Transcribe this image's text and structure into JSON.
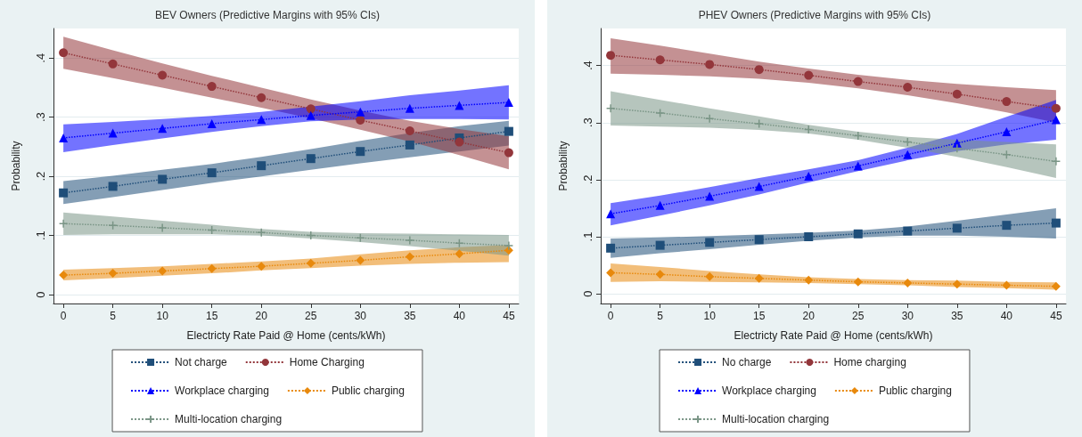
{
  "chart_data": [
    {
      "type": "line",
      "title": "BEV Owners (Predictive Margins with 95% CIs)",
      "xlabel": "Electricty Rate Paid @ Home (cents/kWh)",
      "ylabel": "Probability",
      "x": [
        0,
        5,
        10,
        15,
        20,
        25,
        30,
        35,
        40,
        45
      ],
      "xlim": [
        -1,
        46
      ],
      "xticks": [
        0,
        5,
        10,
        15,
        20,
        25,
        30,
        35,
        40,
        45
      ],
      "ylim": [
        -0.015,
        0.45
      ],
      "yticks": [
        0,
        {
          "value": 0.1,
          "label": ".1"
        },
        {
          "value": 0.2,
          "label": ".2"
        },
        {
          "value": 0.3,
          "label": ".3"
        },
        {
          "value": 0.4,
          "label": ".4"
        }
      ],
      "grid": "y",
      "legend": "bottom",
      "line_style": "dotted",
      "series": [
        {
          "name": "Not charge",
          "color": "#1f4e79",
          "marker": "square",
          "values": [
            0.172,
            0.183,
            0.195,
            0.206,
            0.218,
            0.23,
            0.242,
            0.253,
            0.265,
            0.276
          ],
          "lower": [
            0.153,
            0.165,
            0.177,
            0.189,
            0.2,
            0.211,
            0.222,
            0.232,
            0.242,
            0.252
          ],
          "upper": [
            0.192,
            0.201,
            0.211,
            0.221,
            0.233,
            0.246,
            0.26,
            0.273,
            0.285,
            0.294
          ]
        },
        {
          "name": "Home Charging",
          "color": "#93363b",
          "marker": "circle",
          "values": [
            0.409,
            0.39,
            0.371,
            0.352,
            0.333,
            0.314,
            0.295,
            0.277,
            0.258,
            0.24
          ],
          "lower": [
            0.382,
            0.366,
            0.35,
            0.333,
            0.316,
            0.298,
            0.279,
            0.259,
            0.236,
            0.212
          ],
          "upper": [
            0.436,
            0.413,
            0.391,
            0.37,
            0.35,
            0.33,
            0.311,
            0.294,
            0.28,
            0.268
          ]
        },
        {
          "name": "Workplace charging",
          "color": "#0000ff",
          "marker": "triangle",
          "values": [
            0.265,
            0.273,
            0.281,
            0.289,
            0.296,
            0.303,
            0.309,
            0.315,
            0.32,
            0.325
          ],
          "lower": [
            0.241,
            0.253,
            0.264,
            0.275,
            0.285,
            0.293,
            0.296,
            0.297,
            0.297,
            0.296
          ],
          "upper": [
            0.288,
            0.292,
            0.297,
            0.302,
            0.309,
            0.318,
            0.327,
            0.337,
            0.345,
            0.354
          ]
        },
        {
          "name": "Public charging",
          "color": "#e8890c",
          "marker": "diamond",
          "values": [
            0.033,
            0.036,
            0.04,
            0.044,
            0.048,
            0.053,
            0.058,
            0.064,
            0.069,
            0.075
          ],
          "lower": [
            0.024,
            0.028,
            0.032,
            0.036,
            0.041,
            0.045,
            0.049,
            0.052,
            0.054,
            0.055
          ],
          "upper": [
            0.042,
            0.045,
            0.048,
            0.052,
            0.056,
            0.061,
            0.068,
            0.075,
            0.08,
            0.084
          ]
        },
        {
          "name": "Multi-location charging",
          "color": "#7a9586",
          "marker": "cross",
          "values": [
            0.12,
            0.117,
            0.113,
            0.109,
            0.105,
            0.1,
            0.096,
            0.092,
            0.087,
            0.083
          ],
          "lower": [
            0.101,
            0.102,
            0.102,
            0.102,
            0.1,
            0.095,
            0.089,
            0.082,
            0.074,
            0.066
          ],
          "upper": [
            0.139,
            0.132,
            0.125,
            0.118,
            0.111,
            0.106,
            0.104,
            0.103,
            0.102,
            0.101
          ]
        }
      ]
    },
    {
      "type": "line",
      "title": "PHEV Owners (Predictive Margins with 95% CIs)",
      "xlabel": "Electricty Rate Paid @ Home (cents/kWh)",
      "ylabel": "Probability",
      "x": [
        0,
        5,
        10,
        15,
        20,
        25,
        30,
        35,
        40,
        45
      ],
      "xlim": [
        -1,
        46
      ],
      "xticks": [
        0,
        5,
        10,
        15,
        20,
        25,
        30,
        35,
        40,
        45
      ],
      "ylim": [
        -0.017,
        0.465
      ],
      "yticks": [
        0,
        {
          "value": 0.1,
          "label": ".1"
        },
        {
          "value": 0.2,
          "label": ".2"
        },
        {
          "value": 0.3,
          "label": ".3"
        },
        {
          "value": 0.4,
          "label": ".4"
        }
      ],
      "grid": "y",
      "legend": "bottom",
      "line_style": "dotted",
      "series": [
        {
          "name": "No charge",
          "color": "#1f4e79",
          "marker": "square",
          "values": [
            0.08,
            0.085,
            0.09,
            0.095,
            0.1,
            0.105,
            0.11,
            0.115,
            0.12,
            0.124
          ],
          "lower": [
            0.063,
            0.071,
            0.078,
            0.086,
            0.093,
            0.099,
            0.102,
            0.102,
            0.1,
            0.097
          ],
          "upper": [
            0.097,
            0.099,
            0.101,
            0.104,
            0.107,
            0.111,
            0.118,
            0.128,
            0.139,
            0.15
          ]
        },
        {
          "name": "Home charging",
          "color": "#93363b",
          "marker": "circle",
          "values": [
            0.418,
            0.41,
            0.402,
            0.393,
            0.383,
            0.372,
            0.362,
            0.35,
            0.337,
            0.325
          ],
          "lower": [
            0.386,
            0.384,
            0.381,
            0.377,
            0.37,
            0.36,
            0.348,
            0.334,
            0.318,
            0.3
          ],
          "upper": [
            0.448,
            0.435,
            0.421,
            0.407,
            0.395,
            0.384,
            0.375,
            0.368,
            0.362,
            0.357
          ]
        },
        {
          "name": "Workplace charging",
          "color": "#0000ff",
          "marker": "triangle",
          "values": [
            0.14,
            0.155,
            0.171,
            0.188,
            0.206,
            0.224,
            0.244,
            0.264,
            0.284,
            0.305
          ],
          "lower": [
            0.12,
            0.137,
            0.155,
            0.174,
            0.195,
            0.215,
            0.234,
            0.25,
            0.262,
            0.27
          ],
          "upper": [
            0.159,
            0.172,
            0.187,
            0.203,
            0.218,
            0.234,
            0.256,
            0.28,
            0.31,
            0.34
          ]
        },
        {
          "name": "Public charging",
          "color": "#e8890c",
          "marker": "diamond",
          "values": [
            0.037,
            0.034,
            0.03,
            0.027,
            0.024,
            0.021,
            0.019,
            0.017,
            0.015,
            0.013
          ],
          "lower": [
            0.021,
            0.022,
            0.021,
            0.02,
            0.019,
            0.017,
            0.015,
            0.012,
            0.01,
            0.007
          ],
          "upper": [
            0.053,
            0.047,
            0.04,
            0.034,
            0.029,
            0.026,
            0.024,
            0.023,
            0.021,
            0.02
          ]
        },
        {
          "name": "Multi-location charging",
          "color": "#7a9586",
          "marker": "cross",
          "values": [
            0.325,
            0.317,
            0.307,
            0.298,
            0.288,
            0.277,
            0.266,
            0.255,
            0.244,
            0.232
          ],
          "lower": [
            0.295,
            0.293,
            0.291,
            0.287,
            0.281,
            0.27,
            0.256,
            0.24,
            0.222,
            0.203
          ],
          "upper": [
            0.355,
            0.34,
            0.325,
            0.311,
            0.296,
            0.284,
            0.275,
            0.27,
            0.266,
            0.262
          ]
        }
      ]
    }
  ]
}
